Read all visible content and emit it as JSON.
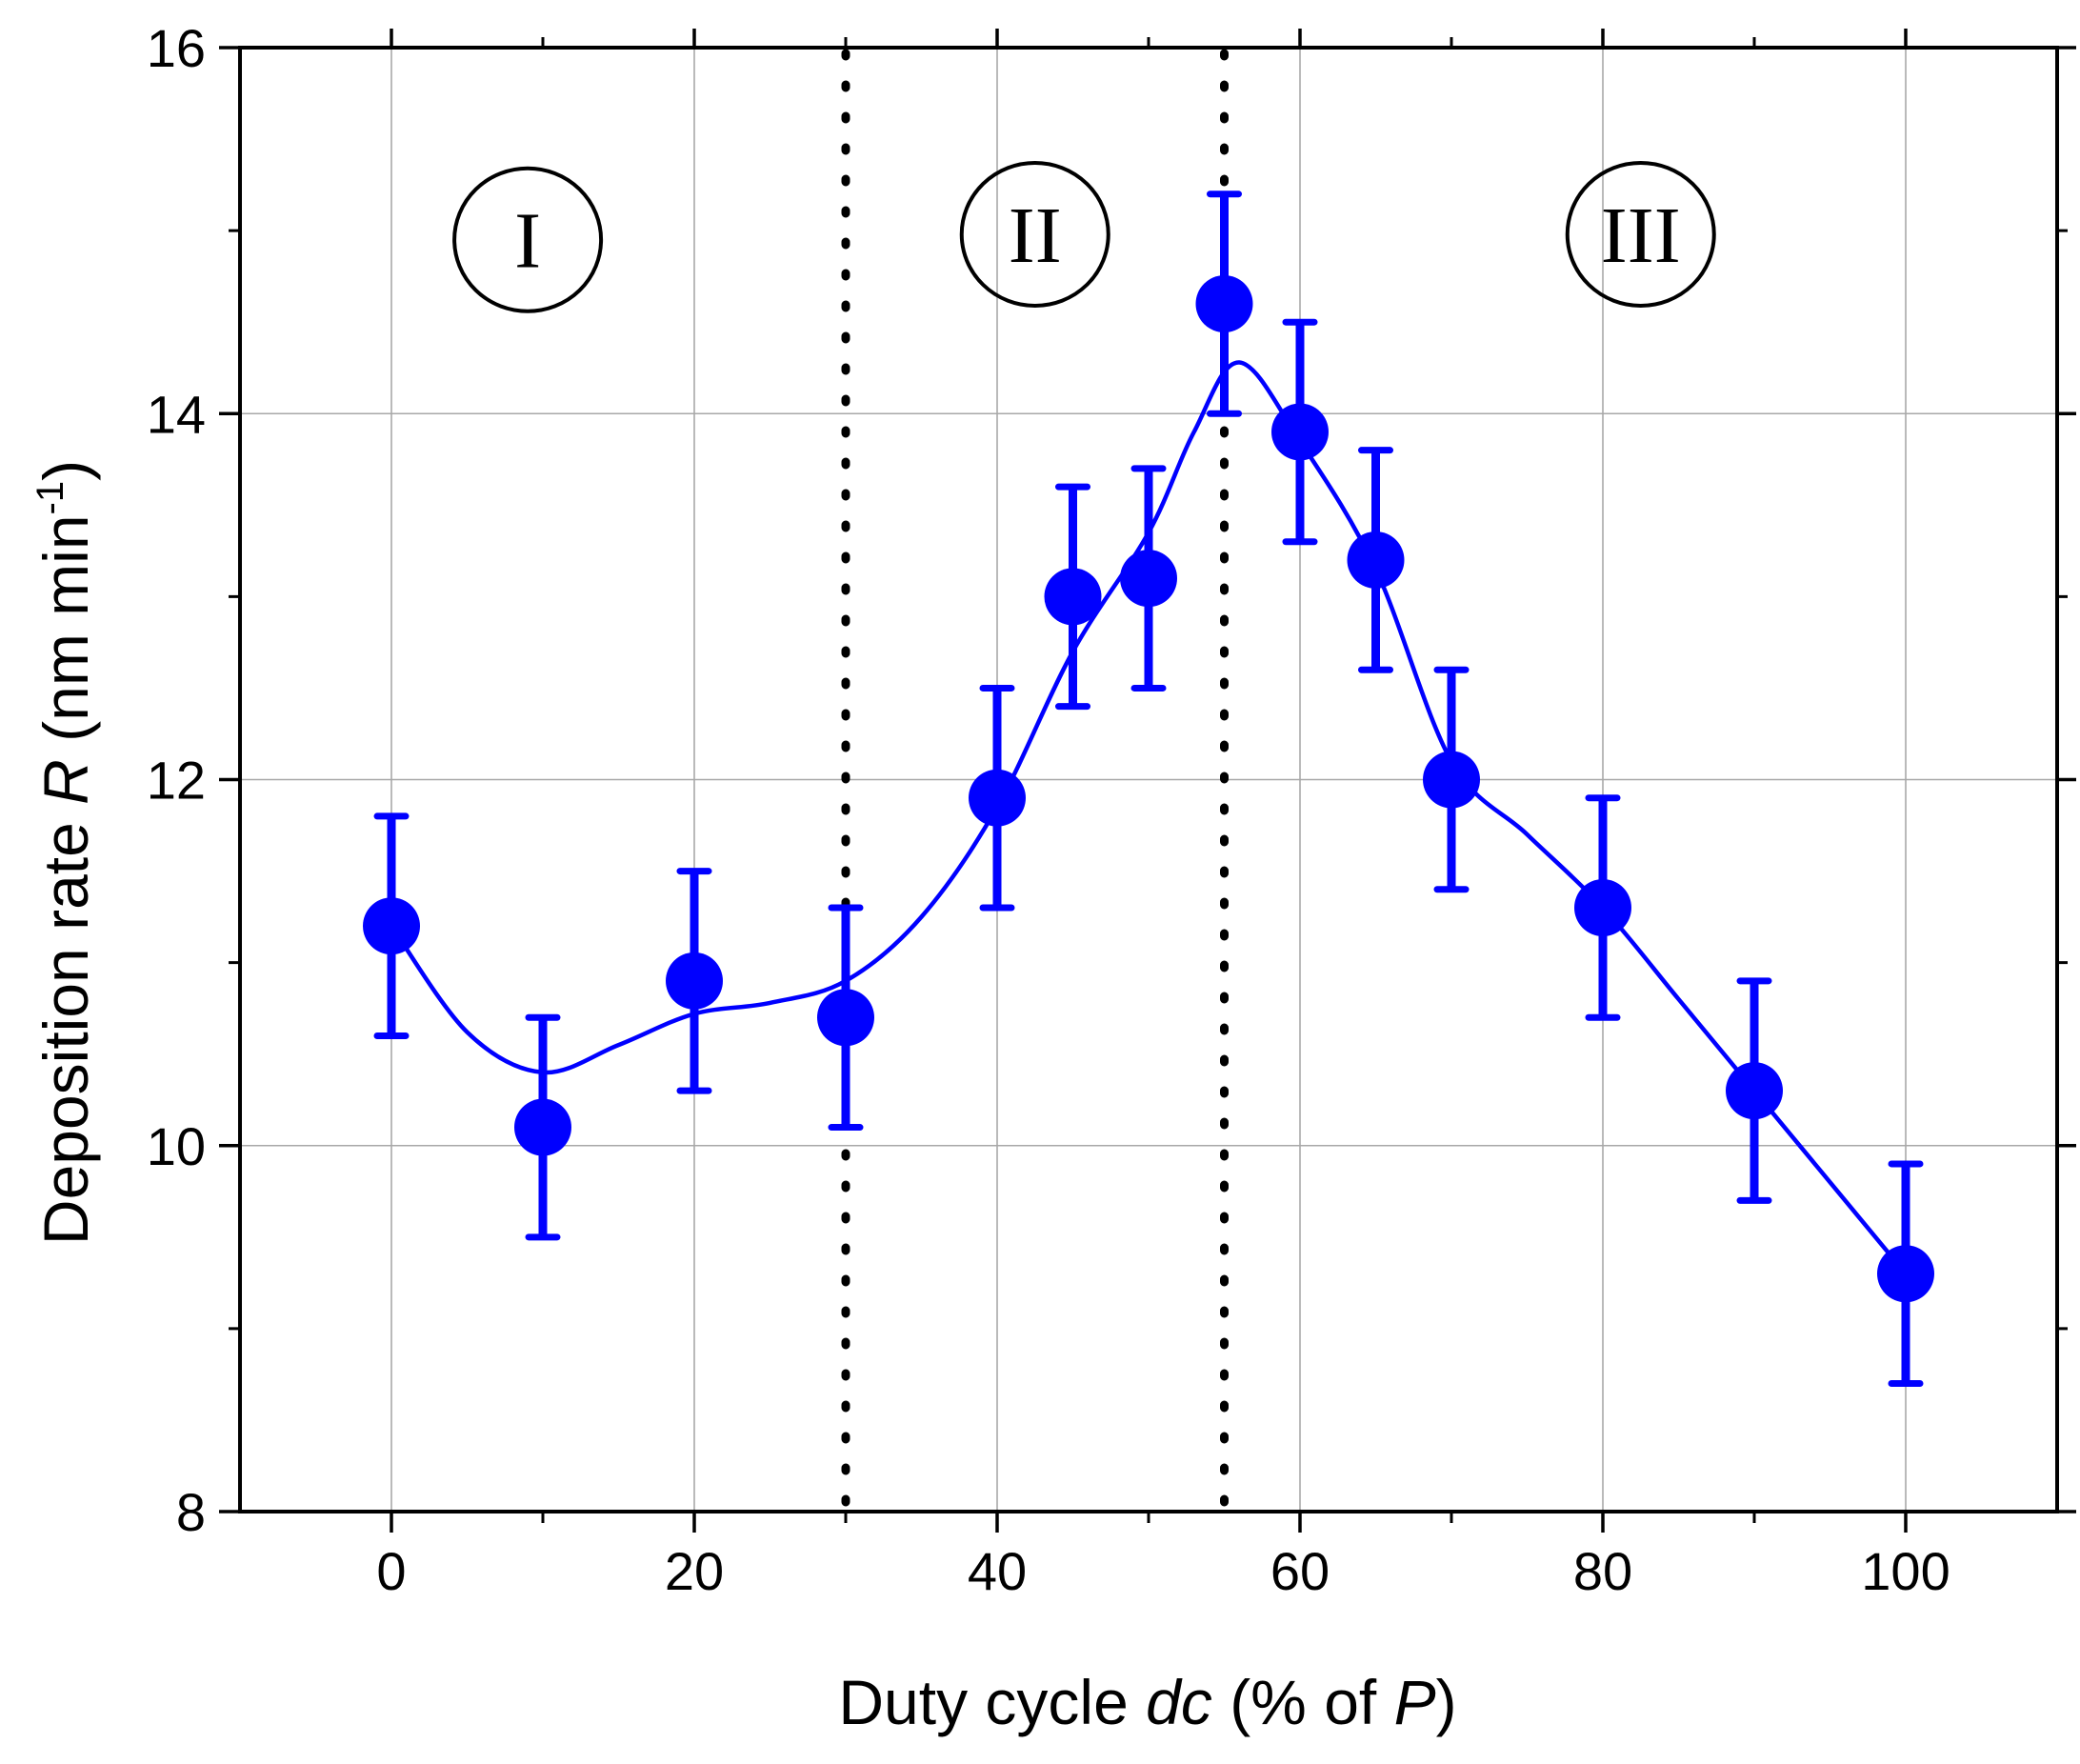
{
  "chart_data": {
    "type": "scatter",
    "title": "",
    "xlabel": {
      "prefix": "Duty cycle ",
      "var": "dc",
      "mid": " (% of ",
      "var2": "P",
      "suffix": ")"
    },
    "ylabel": {
      "prefix": "Deposition rate ",
      "var": "R",
      "unit": " (nm min",
      "sup": "-1",
      "close": ")"
    },
    "xlim": [
      -10,
      110
    ],
    "ylim": [
      8,
      16
    ],
    "xticks": [
      0,
      20,
      40,
      60,
      80,
      100
    ],
    "yticks": [
      8,
      10,
      12,
      14,
      16
    ],
    "xticks_minor": [
      10,
      30,
      50,
      70,
      90
    ],
    "yticks_minor": [
      9,
      11,
      13,
      15
    ],
    "grid": true,
    "series": [
      {
        "name": "Deposition rate",
        "color": "#0000ff",
        "x": [
          0,
          10,
          20,
          30,
          40,
          45,
          50,
          55,
          60,
          65,
          70,
          80,
          90,
          100
        ],
        "y": [
          11.2,
          10.1,
          10.9,
          10.7,
          11.9,
          13.0,
          13.1,
          14.6,
          13.9,
          13.2,
          12.0,
          11.3,
          10.3,
          9.3
        ],
        "error": [
          0.6,
          0.6,
          0.6,
          0.6,
          0.6,
          0.6,
          0.6,
          0.6,
          0.6,
          0.6,
          0.6,
          0.6,
          0.6,
          0.6
        ]
      }
    ],
    "fit_curve": {
      "color": "#0000ff",
      "x": [
        0,
        5,
        10,
        15,
        20,
        25,
        30,
        35,
        40,
        45,
        50,
        53,
        56,
        60,
        65,
        70,
        75,
        80,
        85,
        90,
        95,
        100
      ],
      "y": [
        11.2,
        10.62,
        10.4,
        10.55,
        10.72,
        10.78,
        10.9,
        11.25,
        11.85,
        12.7,
        13.35,
        13.9,
        14.28,
        13.85,
        13.15,
        12.1,
        11.7,
        11.3,
        10.8,
        10.3,
        9.8,
        9.3
      ]
    },
    "vlines": [
      {
        "x": 30,
        "style": "dotted",
        "color": "#000000"
      },
      {
        "x": 55,
        "style": "dotted",
        "color": "#000000"
      }
    ],
    "regions": [
      {
        "label": "I",
        "x": 9,
        "y": 14.95
      },
      {
        "label": "II",
        "x": 42.5,
        "y": 14.98
      },
      {
        "label": "III",
        "x": 82.5,
        "y": 14.98
      }
    ]
  }
}
